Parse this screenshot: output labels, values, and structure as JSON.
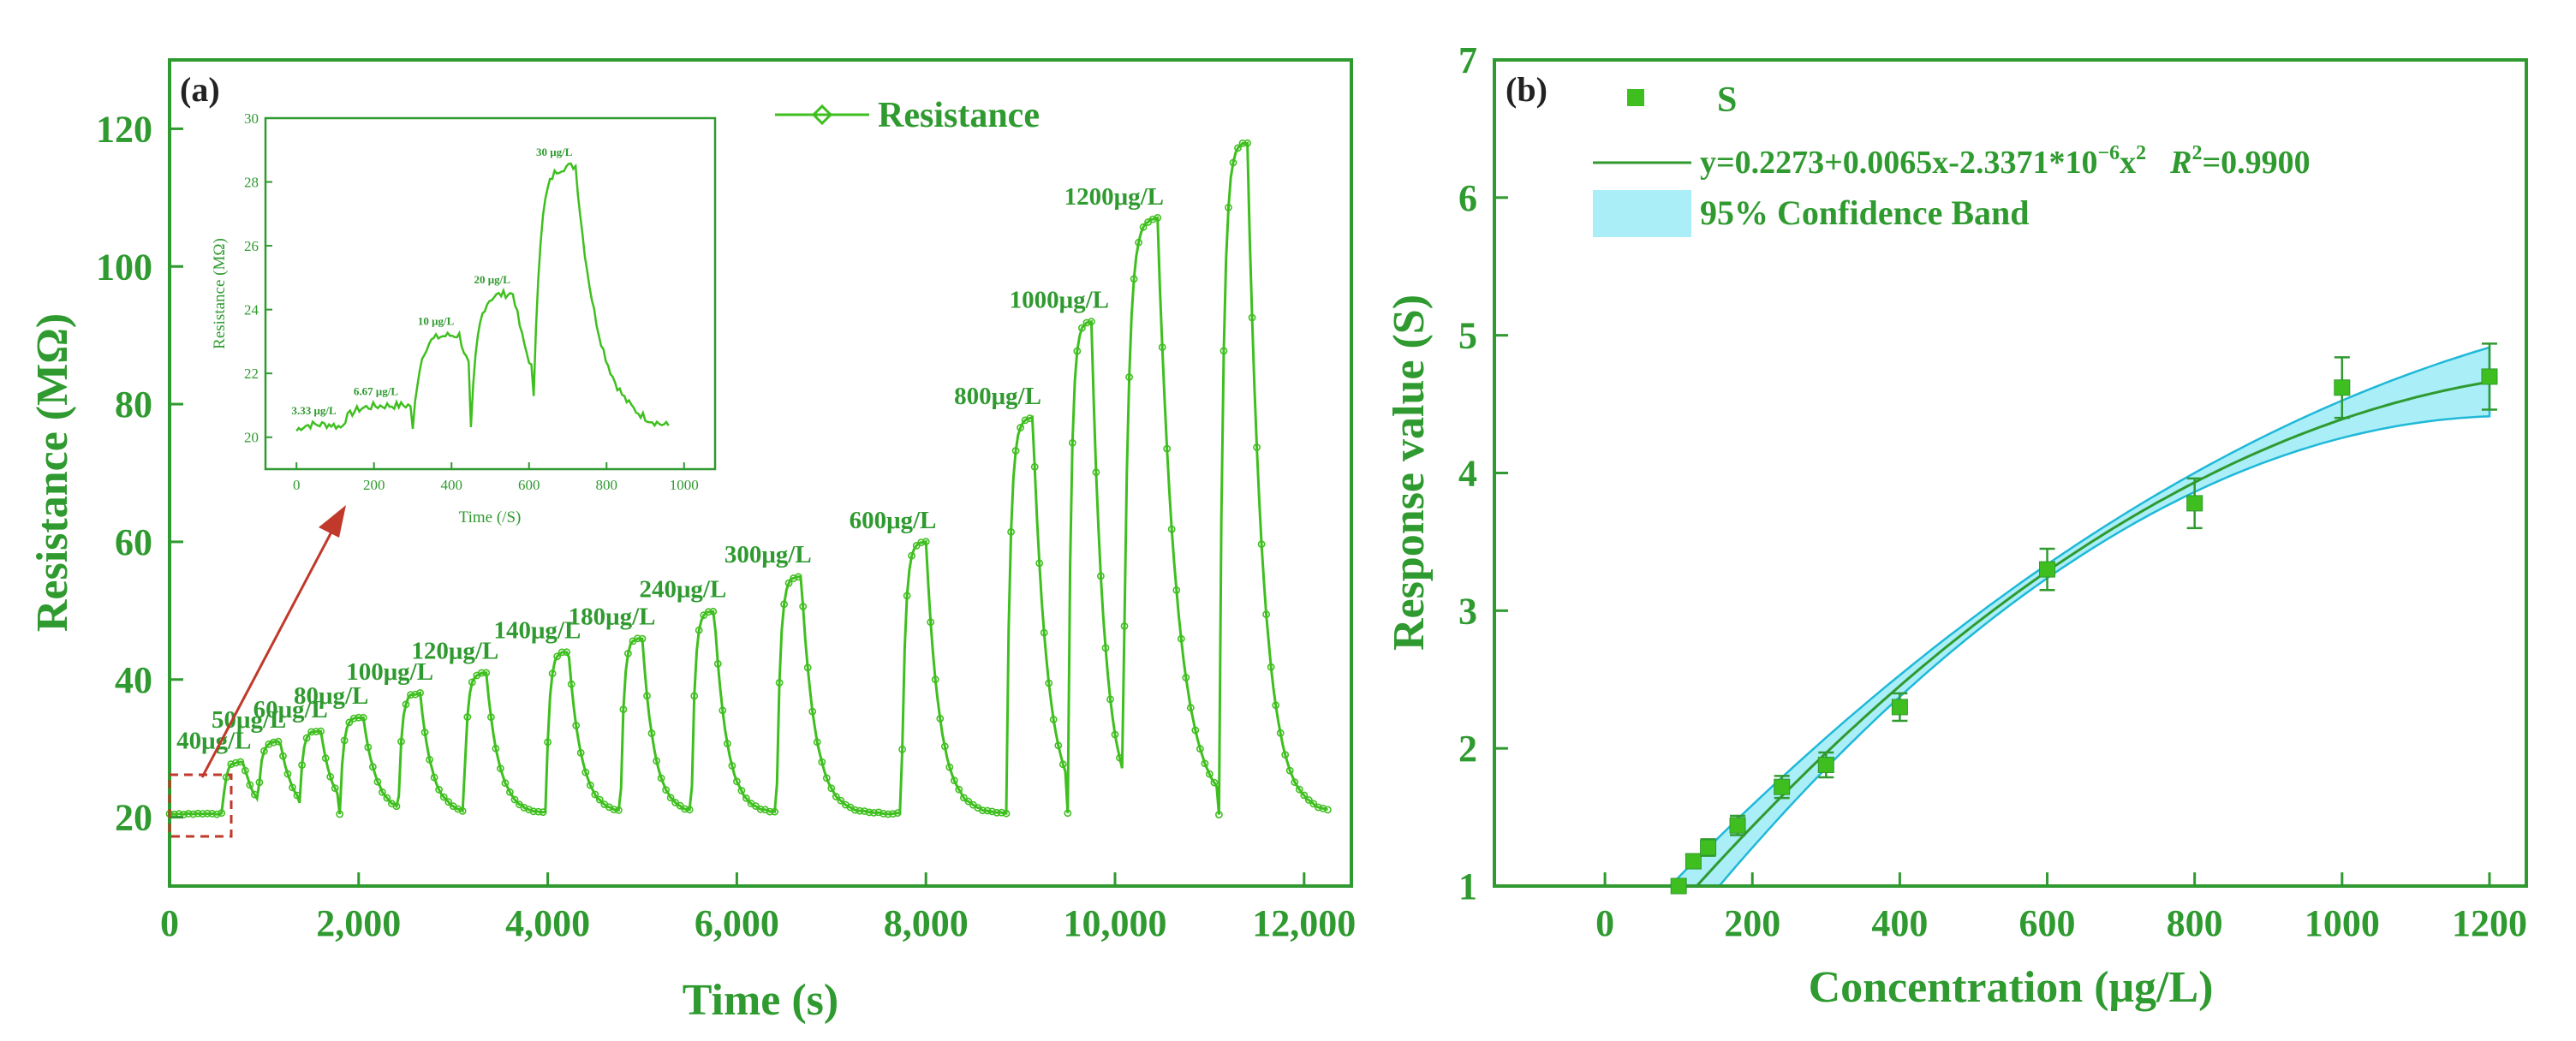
{
  "colors": {
    "green": "#2f9a2f",
    "data_green": "#3fbf1f",
    "band": "#8ee8f4",
    "band_edge": "#1fb8d8",
    "arrow": "#c0392b"
  },
  "chart_data": [
    {
      "panel": "(a)",
      "type": "line",
      "title": "",
      "xlabel": "Time (s)",
      "ylabel": "Resistance (MΩ)",
      "xlim": [
        0,
        12500
      ],
      "ylim": [
        10,
        130
      ],
      "xticks": [
        "0",
        "2,000",
        "4,000",
        "6,000",
        "8,000",
        "10,000",
        "12,000"
      ],
      "yticks": [
        "20",
        "40",
        "60",
        "80",
        "100",
        "120"
      ],
      "legend": {
        "label": "Resistance",
        "position": "top-right"
      },
      "baseline": 20.5,
      "pulses": [
        {
          "label": "40μg/L",
          "t_on": 560,
          "t_off": 780,
          "peak": 28
        },
        {
          "label": "50μg/L",
          "t_on": 930,
          "t_off": 1170,
          "peak": 31
        },
        {
          "label": "60μg/L",
          "t_on": 1370,
          "t_off": 1600,
          "peak": 32.5
        },
        {
          "label": "80μg/L",
          "t_on": 1800,
          "t_off": 2050,
          "peak": 34.5
        },
        {
          "label": "100μg/L",
          "t_on": 2420,
          "t_off": 2650,
          "peak": 38
        },
        {
          "label": "120μg/L",
          "t_on": 3110,
          "t_off": 3350,
          "peak": 41
        },
        {
          "label": "140μg/L",
          "t_on": 3980,
          "t_off": 4220,
          "peak": 44
        },
        {
          "label": "180μg/L",
          "t_on": 4770,
          "t_off": 5000,
          "peak": 46
        },
        {
          "label": "240μg/L",
          "t_on": 5520,
          "t_off": 5760,
          "peak": 50
        },
        {
          "label": "300μg/L",
          "t_on": 6420,
          "t_off": 6680,
          "peak": 55
        },
        {
          "label": "600μg/L",
          "t_on": 7740,
          "t_off": 8000,
          "peak": 60
        },
        {
          "label": "800μg/L",
          "t_on": 8850,
          "t_off": 9130,
          "peak": 78
        },
        {
          "label": "1000μg/L",
          "t_on": 9500,
          "t_off": 9750,
          "peak": 92
        },
        {
          "label": "1200μg/L",
          "t_on": 10080,
          "t_off": 10450,
          "peak": 107
        },
        {
          "label": "",
          "t_on": 11100,
          "t_off": 11400,
          "peak": 118
        }
      ],
      "pulse_label_order_note": "labels as printed",
      "annotations": [
        "40μg/L",
        "50μg/L",
        "60μg/L",
        "80μg/L",
        "100μg/L",
        "120μg/L",
        "140μg/L",
        "180μg/L",
        "240μg/L",
        "300μg/L",
        "600μg/L",
        "800μg/L",
        "1000μg/L",
        "1200μg/L"
      ],
      "inset": {
        "type": "line",
        "xlabel": "Time (/S)",
        "ylabel": "Resistance (MΩ)",
        "xlim": [
          -80,
          1080
        ],
        "ylim": [
          19,
          30
        ],
        "xticks": [
          "0",
          "200",
          "400",
          "600",
          "800",
          "1000"
        ],
        "yticks": [
          "20",
          "22",
          "24",
          "26",
          "28",
          "30"
        ],
        "pulses": [
          {
            "label": "3.33 μg/L",
            "t_on": 0,
            "t_off": 90,
            "peak": 20.4
          },
          {
            "label": "6.67 μg/L",
            "t_on": 110,
            "t_off": 300,
            "peak": 21.0
          },
          {
            "label": "10 μg/L",
            "t_on": 300,
            "t_off": 420,
            "peak": 23.2
          },
          {
            "label": "20 μg/L",
            "t_on": 450,
            "t_off": 560,
            "peak": 24.5
          },
          {
            "label": "30 μg/L",
            "t_on": 610,
            "t_off": 720,
            "peak": 28.5
          }
        ]
      }
    },
    {
      "panel": "(b)",
      "type": "scatter",
      "title": "",
      "xlabel": "Concentration (μg/L)",
      "ylabel": "Response value (S)",
      "xlim": [
        -150,
        1250
      ],
      "ylim": [
        1,
        7
      ],
      "xticks": [
        "0",
        "200",
        "400",
        "600",
        "800",
        "1000",
        "1200"
      ],
      "yticks": [
        "1",
        "2",
        "3",
        "4",
        "5",
        "6",
        "7"
      ],
      "legend": [
        "S",
        "y=0.2273+0.0065x-2.3371*10",
        "−6",
        "x",
        "2",
        "R",
        "2",
        "=0.9900",
        "95% Confidence Band"
      ],
      "series": [
        {
          "name": "S",
          "x": [
            100,
            120,
            140,
            180,
            240,
            300,
            400,
            600,
            800,
            1000,
            1200
          ],
          "y": [
            1.0,
            1.18,
            1.28,
            1.44,
            1.72,
            1.88,
            2.3,
            3.3,
            3.78,
            4.62,
            4.7
          ],
          "err": [
            0.04,
            0.05,
            0.06,
            0.07,
            0.08,
            0.09,
            0.1,
            0.15,
            0.18,
            0.22,
            0.24
          ]
        }
      ],
      "fit": {
        "a": 0.2273,
        "b": 0.0065,
        "c": -2.3371e-06,
        "r2": 0.99
      }
    }
  ]
}
